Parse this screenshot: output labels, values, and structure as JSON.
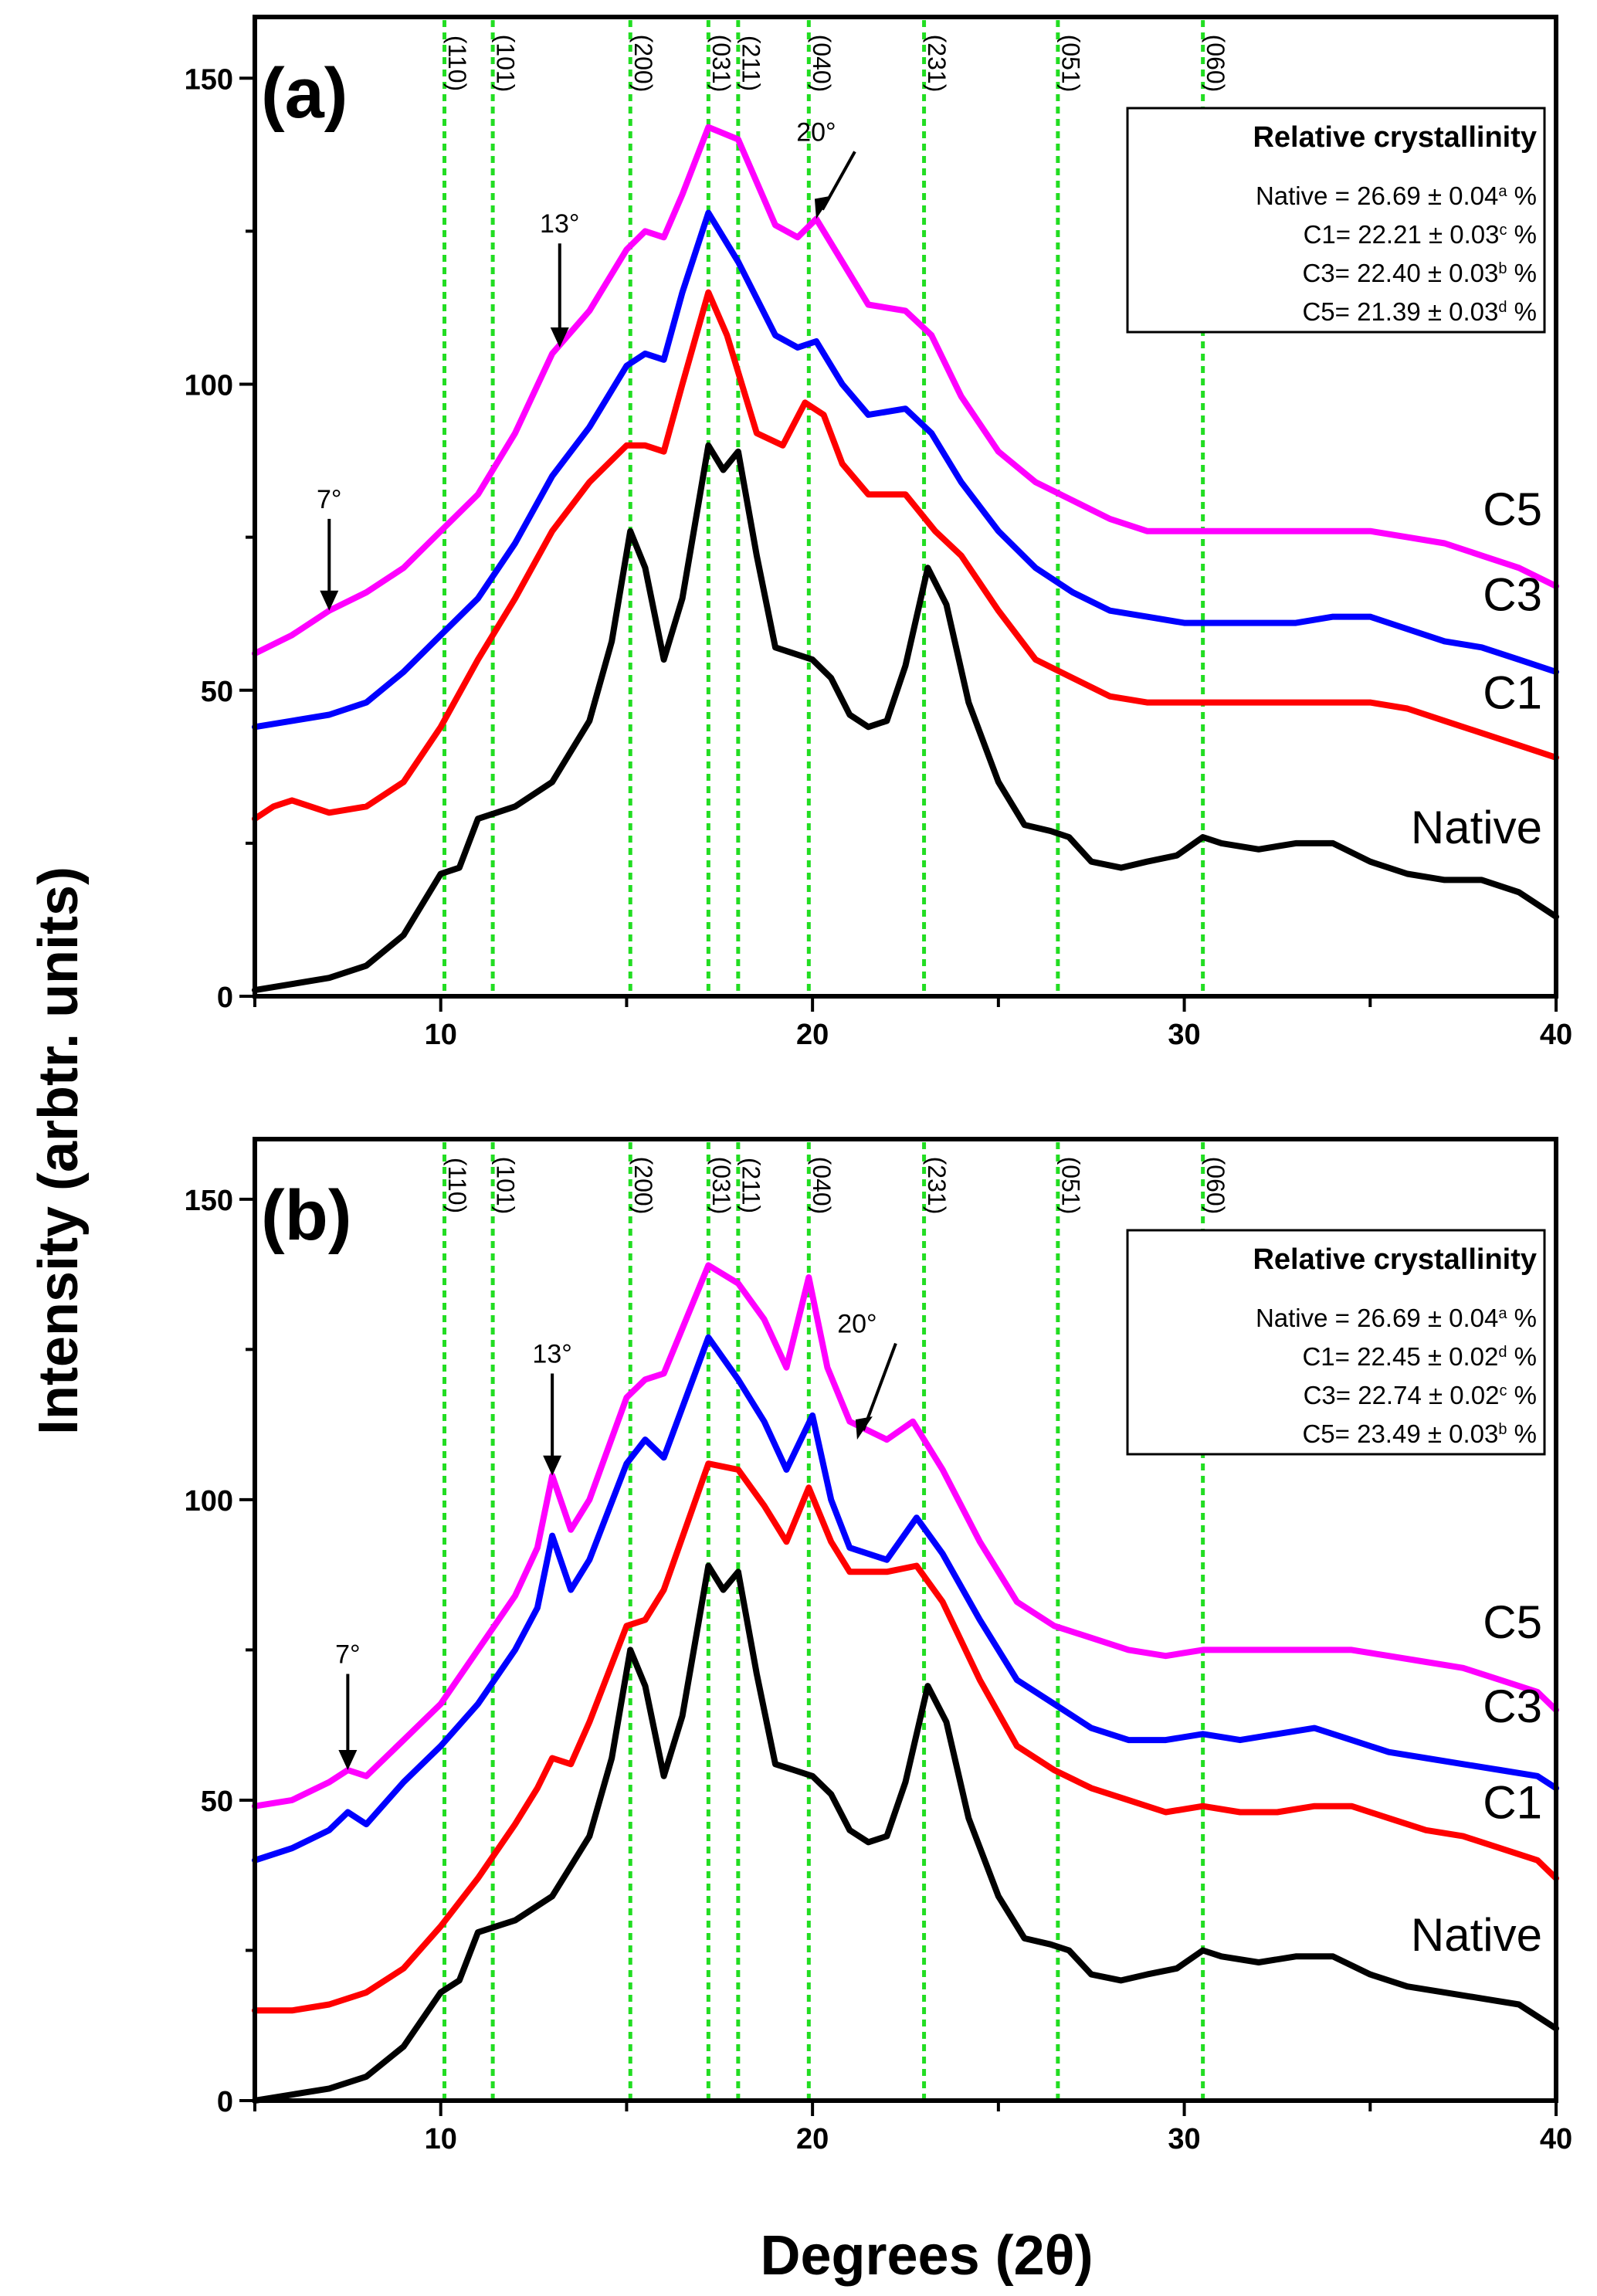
{
  "chart_data": [
    {
      "panel": "(a)",
      "type": "line",
      "xlim": [
        5,
        40
      ],
      "ylim": [
        0,
        160
      ],
      "xticks": [
        "10",
        "20",
        "30",
        "40"
      ],
      "yticks": [
        "0",
        "50",
        "100",
        "150"
      ],
      "reference_lines": [
        {
          "x": 10.1,
          "label": "(110)"
        },
        {
          "x": 11.4,
          "label": "(101)"
        },
        {
          "x": 15.1,
          "label": "(200)"
        },
        {
          "x": 17.2,
          "label": "(031)"
        },
        {
          "x": 18.0,
          "label": "(211)"
        },
        {
          "x": 19.9,
          "label": "(040)"
        },
        {
          "x": 23.0,
          "label": "(231)"
        },
        {
          "x": 26.6,
          "label": "(051)"
        },
        {
          "x": 30.5,
          "label": "(060)"
        }
      ],
      "annotations": [
        {
          "text": "7°",
          "x": 7.0,
          "y_text": 78,
          "y_tip": 63
        },
        {
          "text": "13°",
          "x": 13.2,
          "y_text": 123,
          "y_tip": 106
        },
        {
          "text": "20°",
          "x": 20.1,
          "y_text": 138,
          "y_tip": 127
        }
      ],
      "legend": {
        "title": "Relative crystallinity",
        "entries": [
          {
            "name": "Native",
            "value": "26.69 ± 0.04",
            "sup": "a"
          },
          {
            "name": "C1",
            "value": "22.21 ± 0.03",
            "sup": "c"
          },
          {
            "name": "C3",
            "value": "22.40 ± 0.03",
            "sup": "b"
          },
          {
            "name": "C5",
            "value": "21.39 ± 0.03",
            "sup": "d"
          }
        ]
      },
      "series": [
        {
          "name": "C5",
          "color": "#ff00ff",
          "label_y": 79,
          "x": [
            5,
            6,
            7,
            8,
            9,
            10,
            11,
            12,
            13,
            14,
            15,
            15.5,
            16,
            16.5,
            17.2,
            18,
            19,
            19.6,
            20.1,
            20.8,
            21.5,
            22.5,
            23.2,
            24,
            25,
            26,
            27,
            28,
            29,
            30,
            31,
            32,
            33,
            34,
            35,
            36,
            37,
            38,
            39,
            40
          ],
          "y": [
            56,
            59,
            63,
            66,
            70,
            76,
            82,
            92,
            105,
            112,
            122,
            125,
            124,
            131,
            142,
            140,
            126,
            124,
            127,
            120,
            113,
            112,
            108,
            98,
            89,
            84,
            81,
            78,
            76,
            76,
            76,
            76,
            76,
            76,
            76,
            75,
            74,
            72,
            70,
            67
          ]
        },
        {
          "name": "C3",
          "color": "#0000ff",
          "label_y": 65,
          "x": [
            5,
            6,
            7,
            8,
            9,
            10,
            11,
            12,
            13,
            14,
            15,
            15.5,
            16,
            16.5,
            17.2,
            18,
            19,
            19.6,
            20.1,
            20.8,
            21.5,
            22.5,
            23.2,
            24,
            25,
            26,
            27,
            28,
            29,
            30,
            31,
            32,
            33,
            34,
            35,
            36,
            37,
            38,
            39,
            40
          ],
          "y": [
            44,
            45,
            46,
            48,
            53,
            59,
            65,
            74,
            85,
            93,
            103,
            105,
            104,
            115,
            128,
            120,
            108,
            106,
            107,
            100,
            95,
            96,
            92,
            84,
            76,
            70,
            66,
            63,
            62,
            61,
            61,
            61,
            61,
            62,
            62,
            60,
            58,
            57,
            55,
            53
          ]
        },
        {
          "name": "C1",
          "color": "#ff0000",
          "label_y": 49,
          "x": [
            5,
            5.5,
            6,
            7,
            8,
            9,
            10,
            11,
            12,
            13,
            14,
            15,
            15.5,
            16,
            16.5,
            17.2,
            17.7,
            18.5,
            19.2,
            19.8,
            20.3,
            20.8,
            21.5,
            22.5,
            23.3,
            24,
            25,
            26,
            27,
            28,
            29,
            30,
            31,
            32,
            33,
            34,
            35,
            36,
            37,
            38,
            39,
            40
          ],
          "y": [
            29,
            31,
            32,
            30,
            31,
            35,
            44,
            55,
            65,
            76,
            84,
            90,
            90,
            89,
            100,
            115,
            108,
            92,
            90,
            97,
            95,
            87,
            82,
            82,
            76,
            72,
            63,
            55,
            52,
            49,
            48,
            48,
            48,
            48,
            48,
            48,
            48,
            47,
            45,
            43,
            41,
            39
          ]
        },
        {
          "name": "Native",
          "color": "#000000",
          "label_y": 27,
          "x": [
            5,
            6,
            7,
            8,
            9,
            10,
            10.5,
            11,
            11.5,
            12,
            13,
            14,
            14.6,
            15.1,
            15.5,
            16,
            16.5,
            17.2,
            17.6,
            18,
            18.5,
            19,
            19.5,
            20,
            20.5,
            21,
            21.5,
            22,
            22.5,
            23.1,
            23.6,
            24.2,
            25,
            25.7,
            26.4,
            26.9,
            27.5,
            28.3,
            29,
            29.8,
            30.5,
            31,
            32,
            33,
            34,
            35,
            36,
            37,
            38,
            39,
            40
          ],
          "y": [
            1,
            2,
            3,
            5,
            10,
            20,
            21,
            29,
            30,
            31,
            35,
            45,
            58,
            76,
            70,
            55,
            65,
            90,
            86,
            89,
            72,
            57,
            56,
            55,
            52,
            46,
            44,
            45,
            54,
            70,
            64,
            48,
            35,
            28,
            27,
            26,
            22,
            21,
            22,
            23,
            26,
            25,
            24,
            25,
            25,
            22,
            20,
            19,
            19,
            17,
            13
          ]
        }
      ]
    },
    {
      "panel": "(b)",
      "type": "line",
      "xlim": [
        5,
        40
      ],
      "ylim": [
        0,
        160
      ],
      "xticks": [
        "10",
        "20",
        "30",
        "40"
      ],
      "yticks": [
        "0",
        "50",
        "100",
        "150"
      ],
      "reference_lines": [
        {
          "x": 10.1,
          "label": "(110)"
        },
        {
          "x": 11.4,
          "label": "(101)"
        },
        {
          "x": 15.1,
          "label": "(200)"
        },
        {
          "x": 17.2,
          "label": "(031)"
        },
        {
          "x": 18.0,
          "label": "(211)"
        },
        {
          "x": 19.9,
          "label": "(040)"
        },
        {
          "x": 23.0,
          "label": "(231)"
        },
        {
          "x": 26.6,
          "label": "(051)"
        },
        {
          "x": 30.5,
          "label": "(060)"
        }
      ],
      "annotations": [
        {
          "text": "7°",
          "x": 7.5,
          "y_text": 71,
          "y_tip": 55
        },
        {
          "text": "13°",
          "x": 13.0,
          "y_text": 121,
          "y_tip": 104
        },
        {
          "text": "20°",
          "x": 21.2,
          "y_text": 126,
          "y_tip": 110
        }
      ],
      "legend": {
        "title": "Relative crystallinity",
        "entries": [
          {
            "name": "Native",
            "value": "26.69 ± 0.04",
            "sup": "a"
          },
          {
            "name": "C1",
            "value": "22.45 ± 0.02",
            "sup": "d"
          },
          {
            "name": "C3",
            "value": "22.74 ± 0.02",
            "sup": "c"
          },
          {
            "name": "C5",
            "value": "23.49 ± 0.03",
            "sup": "b"
          }
        ]
      },
      "series": [
        {
          "name": "C5",
          "color": "#ff00ff",
          "label_y": 79,
          "x": [
            5,
            6,
            7,
            7.5,
            8,
            9,
            10,
            11,
            12,
            12.6,
            13.0,
            13.5,
            14,
            15,
            15.5,
            16,
            17.2,
            18,
            18.7,
            19.3,
            19.9,
            20.4,
            21,
            22,
            22.7,
            23.5,
            24.5,
            25.5,
            26.5,
            27.5,
            28.5,
            29.5,
            30.5,
            31.5,
            32.5,
            33.5,
            34.5,
            35.5,
            36.5,
            37.5,
            38.5,
            39.5,
            40
          ],
          "y": [
            49,
            50,
            53,
            55,
            54,
            60,
            66,
            75,
            84,
            92,
            104,
            95,
            100,
            117,
            120,
            121,
            139,
            136,
            130,
            122,
            137,
            122,
            113,
            110,
            113,
            105,
            93,
            83,
            79,
            77,
            75,
            74,
            75,
            75,
            75,
            75,
            75,
            74,
            73,
            72,
            70,
            68,
            65
          ]
        },
        {
          "name": "C3",
          "color": "#0000ff",
          "label_y": 65,
          "x": [
            5,
            6,
            7,
            7.5,
            8,
            9,
            10,
            11,
            12,
            12.6,
            13.0,
            13.5,
            14,
            15,
            15.5,
            16,
            17.2,
            18,
            18.7,
            19.3,
            20.0,
            20.5,
            21,
            22,
            22.8,
            23.5,
            24.5,
            25.5,
            26.5,
            27.5,
            28.5,
            29.5,
            30.5,
            31.5,
            32.5,
            33.5,
            34.5,
            35.5,
            36.5,
            37.5,
            38.5,
            39.5,
            40
          ],
          "y": [
            40,
            42,
            45,
            48,
            46,
            53,
            59,
            66,
            75,
            82,
            94,
            85,
            90,
            106,
            110,
            107,
            127,
            120,
            113,
            105,
            114,
            100,
            92,
            90,
            97,
            91,
            80,
            70,
            66,
            62,
            60,
            60,
            61,
            60,
            61,
            62,
            60,
            58,
            57,
            56,
            55,
            54,
            52
          ]
        },
        {
          "name": "C1",
          "color": "#ff0000",
          "label_y": 49,
          "x": [
            5,
            6,
            7,
            8,
            9,
            10,
            11,
            12,
            12.6,
            13.0,
            13.5,
            14,
            15,
            15.5,
            16,
            17.2,
            18,
            18.7,
            19.3,
            19.9,
            20.5,
            21,
            22,
            22.8,
            23.5,
            24.5,
            25.5,
            26.5,
            27.5,
            28.5,
            29.5,
            30.5,
            31.5,
            32.5,
            33.5,
            34.5,
            35.5,
            36.5,
            37.5,
            38.5,
            39.5,
            40
          ],
          "y": [
            15,
            15,
            16,
            18,
            22,
            29,
            37,
            46,
            52,
            57,
            56,
            63,
            79,
            80,
            85,
            106,
            105,
            99,
            93,
            102,
            93,
            88,
            88,
            89,
            83,
            70,
            59,
            55,
            52,
            50,
            48,
            49,
            48,
            48,
            49,
            49,
            47,
            45,
            44,
            42,
            40,
            37
          ]
        },
        {
          "name": "Native",
          "color": "#000000",
          "label_y": 27,
          "x": [
            5,
            6,
            7,
            8,
            9,
            10,
            10.5,
            11,
            11.5,
            12,
            13,
            14,
            14.6,
            15.1,
            15.5,
            16,
            16.5,
            17.2,
            17.6,
            18,
            18.5,
            19,
            19.5,
            20,
            20.5,
            21,
            21.5,
            22,
            22.5,
            23.1,
            23.6,
            24.2,
            25,
            25.7,
            26.4,
            26.9,
            27.5,
            28.3,
            29,
            29.8,
            30.5,
            31,
            32,
            33,
            34,
            35,
            36,
            37,
            38,
            39,
            40
          ],
          "y": [
            0,
            1,
            2,
            4,
            9,
            18,
            20,
            28,
            29,
            30,
            34,
            44,
            57,
            75,
            69,
            54,
            64,
            89,
            85,
            88,
            71,
            56,
            55,
            54,
            51,
            45,
            43,
            44,
            53,
            69,
            63,
            47,
            34,
            27,
            26,
            25,
            21,
            20,
            21,
            22,
            25,
            24,
            23,
            24,
            24,
            21,
            19,
            18,
            17,
            16,
            12
          ]
        }
      ]
    }
  ],
  "axes": {
    "ylabel": "Intensity (arbtr. units)",
    "xlabel": "Degrees (2θ)"
  }
}
